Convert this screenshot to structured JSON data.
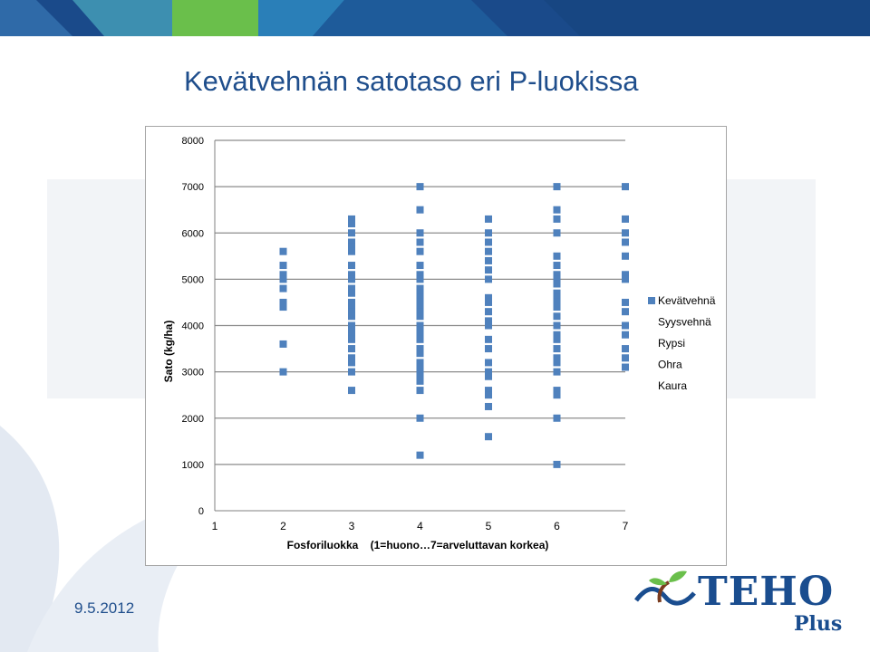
{
  "slide": {
    "title": "Kevätvehnän satotaso eri P-luokissa",
    "date": "9.5.2012"
  },
  "logo": {
    "word": "TEHO",
    "sub": "Plus",
    "icon": "plant-wave-logo-icon"
  },
  "colors": {
    "title": "#1f4e8c",
    "marker": "#4f81bd",
    "banner_dark": "#1a4a8a",
    "banner_green": "#6abf4b",
    "logo_blue": "#1a4d8f",
    "logo_green": "#6abf4b",
    "logo_brown": "#7a3b1e"
  },
  "chart_data": {
    "type": "scatter",
    "xlabel": "Fosforiluokka    (1=huono…7=arveluttavan korkea)",
    "ylabel": "Sato (kg/ha)",
    "xlim": [
      1,
      7
    ],
    "ylim": [
      0,
      8000
    ],
    "x_ticks": [
      "1",
      "2",
      "3",
      "4",
      "5",
      "6",
      "7"
    ],
    "y_ticks": [
      "0",
      "1000",
      "2000",
      "3000",
      "4000",
      "5000",
      "6000",
      "7000",
      "8000"
    ],
    "grid": "horizontal",
    "legend_position": "right",
    "legend": [
      "Kevätvehnä",
      "Syysvehnä",
      "Rypsi",
      "Ohra",
      "Kaura"
    ],
    "series": [
      {
        "name": "Kevätvehnä",
        "points": [
          [
            2,
            5600
          ],
          [
            2,
            5300
          ],
          [
            2,
            5100
          ],
          [
            2,
            5000
          ],
          [
            2,
            4800
          ],
          [
            2,
            4500
          ],
          [
            2,
            4400
          ],
          [
            2,
            3600
          ],
          [
            2,
            3000
          ],
          [
            3,
            6300
          ],
          [
            3,
            6200
          ],
          [
            3,
            6000
          ],
          [
            3,
            5800
          ],
          [
            3,
            5700
          ],
          [
            3,
            5600
          ],
          [
            3,
            5300
          ],
          [
            3,
            5100
          ],
          [
            3,
            5000
          ],
          [
            3,
            4800
          ],
          [
            3,
            4700
          ],
          [
            3,
            4500
          ],
          [
            3,
            4400
          ],
          [
            3,
            4300
          ],
          [
            3,
            4200
          ],
          [
            3,
            4000
          ],
          [
            3,
            3900
          ],
          [
            3,
            3800
          ],
          [
            3,
            3700
          ],
          [
            3,
            3500
          ],
          [
            3,
            3300
          ],
          [
            3,
            3200
          ],
          [
            3,
            3000
          ],
          [
            3,
            2600
          ],
          [
            4,
            7000
          ],
          [
            4,
            6500
          ],
          [
            4,
            6000
          ],
          [
            4,
            5800
          ],
          [
            4,
            5600
          ],
          [
            4,
            5300
          ],
          [
            4,
            5100
          ],
          [
            4,
            5000
          ],
          [
            4,
            4800
          ],
          [
            4,
            4700
          ],
          [
            4,
            4600
          ],
          [
            4,
            4500
          ],
          [
            4,
            4400
          ],
          [
            4,
            4300
          ],
          [
            4,
            4200
          ],
          [
            4,
            4000
          ],
          [
            4,
            3900
          ],
          [
            4,
            3800
          ],
          [
            4,
            3700
          ],
          [
            4,
            3500
          ],
          [
            4,
            3400
          ],
          [
            4,
            3200
          ],
          [
            4,
            3100
          ],
          [
            4,
            3000
          ],
          [
            4,
            2900
          ],
          [
            4,
            2800
          ],
          [
            4,
            2600
          ],
          [
            4,
            2000
          ],
          [
            4,
            1200
          ],
          [
            5,
            6300
          ],
          [
            5,
            6000
          ],
          [
            5,
            5800
          ],
          [
            5,
            5600
          ],
          [
            5,
            5400
          ],
          [
            5,
            5200
          ],
          [
            5,
            5000
          ],
          [
            5,
            4600
          ],
          [
            5,
            4500
          ],
          [
            5,
            4300
          ],
          [
            5,
            4100
          ],
          [
            5,
            4000
          ],
          [
            5,
            3700
          ],
          [
            5,
            3500
          ],
          [
            5,
            3200
          ],
          [
            5,
            3000
          ],
          [
            5,
            2900
          ],
          [
            5,
            2600
          ],
          [
            5,
            2500
          ],
          [
            5,
            2250
          ],
          [
            5,
            1600
          ],
          [
            6,
            7000
          ],
          [
            6,
            6500
          ],
          [
            6,
            6300
          ],
          [
            6,
            6000
          ],
          [
            6,
            5500
          ],
          [
            6,
            5300
          ],
          [
            6,
            5100
          ],
          [
            6,
            5000
          ],
          [
            6,
            4900
          ],
          [
            6,
            4700
          ],
          [
            6,
            4600
          ],
          [
            6,
            4500
          ],
          [
            6,
            4400
          ],
          [
            6,
            4200
          ],
          [
            6,
            4000
          ],
          [
            6,
            3800
          ],
          [
            6,
            3700
          ],
          [
            6,
            3500
          ],
          [
            6,
            3300
          ],
          [
            6,
            3200
          ],
          [
            6,
            3000
          ],
          [
            6,
            2600
          ],
          [
            6,
            2500
          ],
          [
            6,
            2000
          ],
          [
            6,
            1000
          ],
          [
            7,
            7000
          ],
          [
            7,
            6300
          ],
          [
            7,
            6000
          ],
          [
            7,
            5800
          ],
          [
            7,
            5500
          ],
          [
            7,
            5100
          ],
          [
            7,
            5000
          ],
          [
            7,
            4500
          ],
          [
            7,
            4300
          ],
          [
            7,
            4000
          ],
          [
            7,
            3800
          ],
          [
            7,
            3500
          ],
          [
            7,
            3300
          ],
          [
            7,
            3100
          ]
        ]
      }
    ]
  }
}
